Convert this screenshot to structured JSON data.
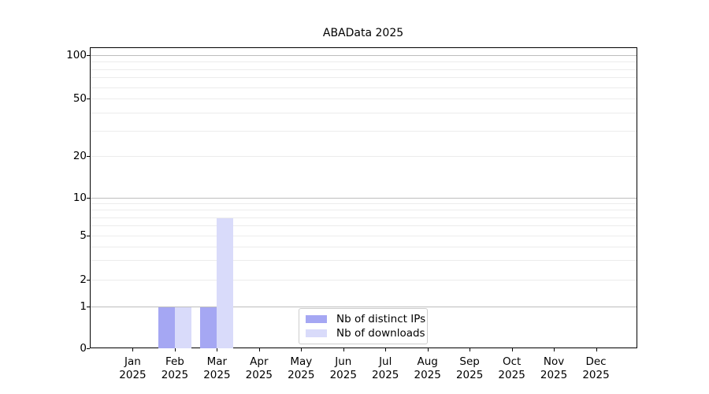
{
  "title": "ABAData 2025",
  "chart_data": {
    "type": "bar",
    "title": "ABAData 2025",
    "categories": [
      "Jan 2025",
      "Feb 2025",
      "Mar 2025",
      "Apr 2025",
      "May 2025",
      "Jun 2025",
      "Jul 2025",
      "Aug 2025",
      "Sep 2025",
      "Oct 2025",
      "Nov 2025",
      "Dec 2025"
    ],
    "x_tick_months": [
      "Jan",
      "Feb",
      "Mar",
      "Apr",
      "May",
      "Jun",
      "Jul",
      "Aug",
      "Sep",
      "Oct",
      "Nov",
      "Dec"
    ],
    "x_tick_year": "2025",
    "series": [
      {
        "name": "Nb of distinct IPs",
        "color": "#a5a7f3",
        "values": [
          0,
          1,
          1,
          0,
          0,
          0,
          0,
          0,
          0,
          0,
          0,
          0
        ]
      },
      {
        "name": "Nb of downloads",
        "color": "#d9dbfa",
        "values": [
          0,
          1,
          7,
          0,
          0,
          0,
          0,
          0,
          0,
          0,
          0,
          0
        ]
      }
    ],
    "y_axis": {
      "scale": "log-like",
      "tick_values": [
        0,
        1,
        2,
        5,
        10,
        20,
        50,
        100
      ],
      "tick_labels": [
        "0",
        "1",
        "2",
        "5",
        "10",
        "20",
        "50",
        "100"
      ],
      "lim_top_value": 115
    },
    "grid": {
      "on": true,
      "major_values": [
        1,
        10,
        100
      ],
      "minor_values": [
        2,
        3,
        4,
        5,
        6,
        7,
        8,
        9,
        20,
        30,
        40,
        50,
        60,
        70,
        80,
        90
      ],
      "major_color": "#bdbdbd",
      "minor_color": "#ececec"
    },
    "legend": {
      "position": "lower center inside plot",
      "entries": [
        "Nb of distinct IPs",
        "Nb of downloads"
      ]
    }
  },
  "colors": {
    "background": "#ffffff",
    "spine": "#000000",
    "text": "#000000",
    "series_dark": "#a5a7f3",
    "series_light": "#d9dbfa"
  }
}
